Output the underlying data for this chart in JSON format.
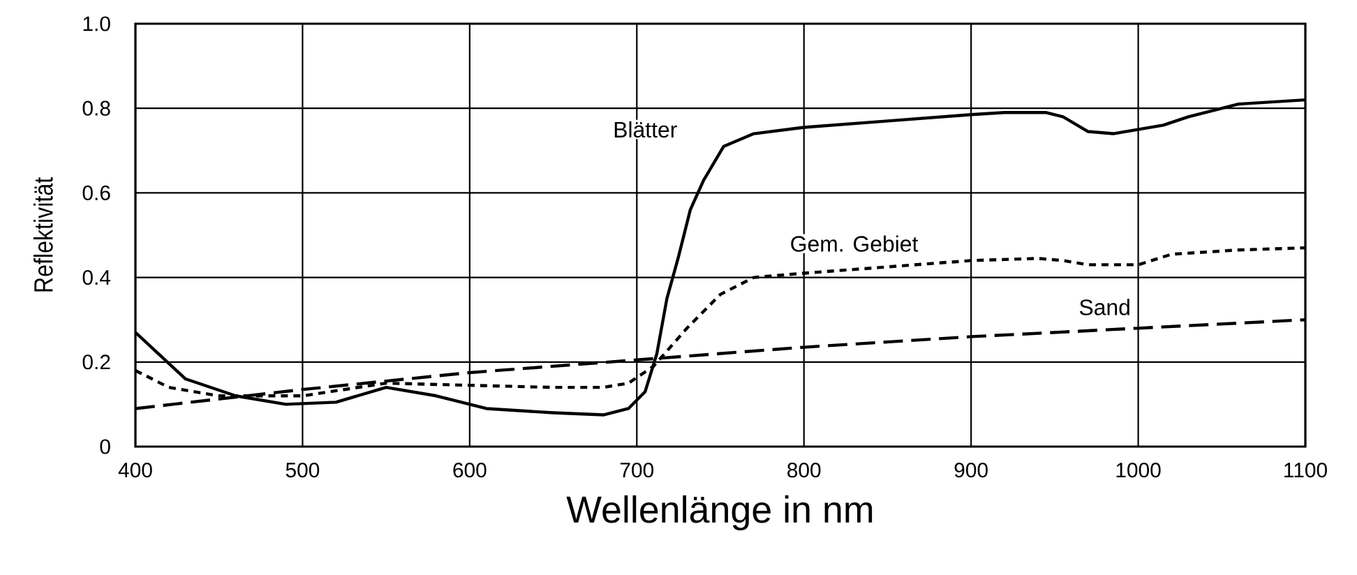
{
  "chart_data": {
    "type": "line",
    "xlabel": "Wellenlänge in nm",
    "ylabel": "Reflektivität",
    "xlim": [
      400,
      1100
    ],
    "ylim": [
      0,
      1
    ],
    "xticks": [
      400,
      500,
      600,
      700,
      800,
      900,
      1000,
      1100
    ],
    "yticks": [
      0,
      0.2,
      0.4,
      0.6,
      0.8,
      {
        "value": 1,
        "label": "1.0"
      }
    ],
    "grid": true,
    "legend": false,
    "marker": "none",
    "series": [
      {
        "name": "Blätter",
        "color": "#000000",
        "line_style": "solid",
        "x": [
          400,
          430,
          460,
          490,
          520,
          550,
          580,
          610,
          650,
          680,
          695,
          705,
          712,
          718,
          725,
          732,
          740,
          752,
          770,
          800,
          850,
          900,
          920,
          945,
          955,
          970,
          985,
          1015,
          1030,
          1060,
          1100
        ],
        "values": [
          0.27,
          0.16,
          0.12,
          0.1,
          0.105,
          0.14,
          0.12,
          0.09,
          0.08,
          0.075,
          0.09,
          0.13,
          0.22,
          0.35,
          0.45,
          0.56,
          0.63,
          0.71,
          0.74,
          0.755,
          0.77,
          0.785,
          0.79,
          0.79,
          0.78,
          0.745,
          0.74,
          0.76,
          0.78,
          0.81,
          0.82
        ]
      },
      {
        "name": "Gem. Gebiet",
        "color": "#000000",
        "line_style": "dotted",
        "x": [
          400,
          420,
          450,
          500,
          550,
          600,
          650,
          680,
          695,
          710,
          730,
          750,
          770,
          800,
          850,
          900,
          940,
          955,
          970,
          1000,
          1020,
          1060,
          1100
        ],
        "values": [
          0.18,
          0.14,
          0.12,
          0.12,
          0.15,
          0.145,
          0.14,
          0.14,
          0.15,
          0.19,
          0.28,
          0.36,
          0.4,
          0.41,
          0.425,
          0.44,
          0.445,
          0.44,
          0.43,
          0.43,
          0.455,
          0.465,
          0.47
        ]
      },
      {
        "name": "Sand",
        "color": "#000000",
        "line_style": "dashed",
        "x": [
          400,
          500,
          600,
          700,
          800,
          900,
          1000,
          1100
        ],
        "values": [
          0.09,
          0.135,
          0.175,
          0.205,
          0.235,
          0.26,
          0.28,
          0.3
        ]
      }
    ]
  }
}
